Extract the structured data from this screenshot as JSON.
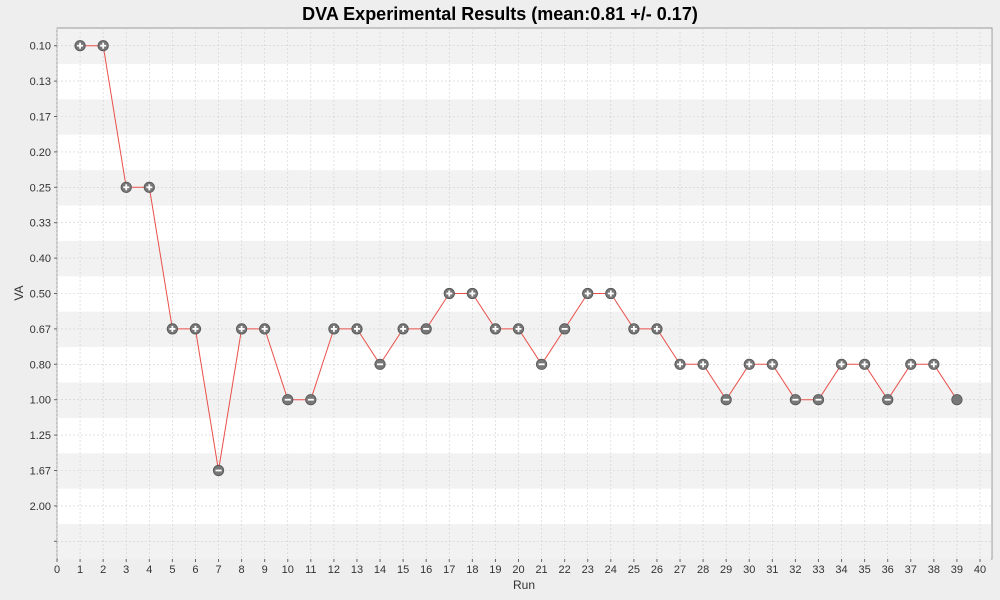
{
  "chart_data": {
    "type": "line",
    "title": "DVA Experimental Results (mean:0.81 +/- 0.17)",
    "xlabel": "Run",
    "ylabel": "VA",
    "xlim": [
      0,
      40
    ],
    "x_ticks": [
      "0",
      "1",
      "2",
      "3",
      "4",
      "5",
      "6",
      "7",
      "8",
      "9",
      "10",
      "11",
      "12",
      "13",
      "14",
      "15",
      "16",
      "17",
      "18",
      "19",
      "20",
      "21",
      "22",
      "23",
      "24",
      "25",
      "26",
      "27",
      "28",
      "29",
      "30",
      "31",
      "32",
      "33",
      "34",
      "35",
      "36",
      "37",
      "38",
      "39",
      "40"
    ],
    "y_categories": [
      "0.10",
      "0.13",
      "0.17",
      "0.20",
      "0.25",
      "0.33",
      "0.40",
      "0.50",
      "0.67",
      "0.80",
      "1.00",
      "1.25",
      "1.67",
      "2.00",
      ""
    ],
    "grid": true,
    "legend": "none",
    "colors": {
      "line": "#e8504a",
      "marker": "#777777",
      "band": "#f2f2f2",
      "plot_bg": "#ffffff",
      "grid": "#d0d0d0"
    },
    "series": [
      {
        "x": [
          1,
          2,
          3,
          4,
          5,
          6,
          7,
          8,
          9,
          10,
          11,
          12,
          13,
          14,
          15,
          16,
          17,
          18,
          19,
          20,
          21,
          22,
          23,
          24,
          25,
          26,
          27,
          28,
          29,
          30,
          31,
          32,
          33,
          34,
          35,
          36,
          37,
          38,
          39
        ],
        "y": [
          "0.10",
          "0.10",
          "0.25",
          "0.25",
          "0.67",
          "0.67",
          "1.67",
          "0.67",
          "0.67",
          "1.00",
          "1.00",
          "0.67",
          "0.67",
          "0.80",
          "0.67",
          "0.67",
          "0.50",
          "0.50",
          "0.67",
          "0.67",
          "0.80",
          "0.67",
          "0.50",
          "0.50",
          "0.67",
          "0.67",
          "0.80",
          "0.80",
          "1.00",
          "0.80",
          "0.80",
          "1.00",
          "1.00",
          "0.80",
          "0.80",
          "1.00",
          "0.80",
          "0.80",
          "1.00"
        ],
        "markers": [
          "plus",
          "plus",
          "plus",
          "plus",
          "plus",
          "plus",
          "minus",
          "plus",
          "plus",
          "minus",
          "minus",
          "plus",
          "plus",
          "minus",
          "plus",
          "minus",
          "plus",
          "plus",
          "plus",
          "plus",
          "minus",
          "minus",
          "plus",
          "plus",
          "plus",
          "plus",
          "plus",
          "plus",
          "minus",
          "plus",
          "plus",
          "minus",
          "minus",
          "plus",
          "plus",
          "minus",
          "plus",
          "plus",
          "filled"
        ]
      }
    ]
  }
}
